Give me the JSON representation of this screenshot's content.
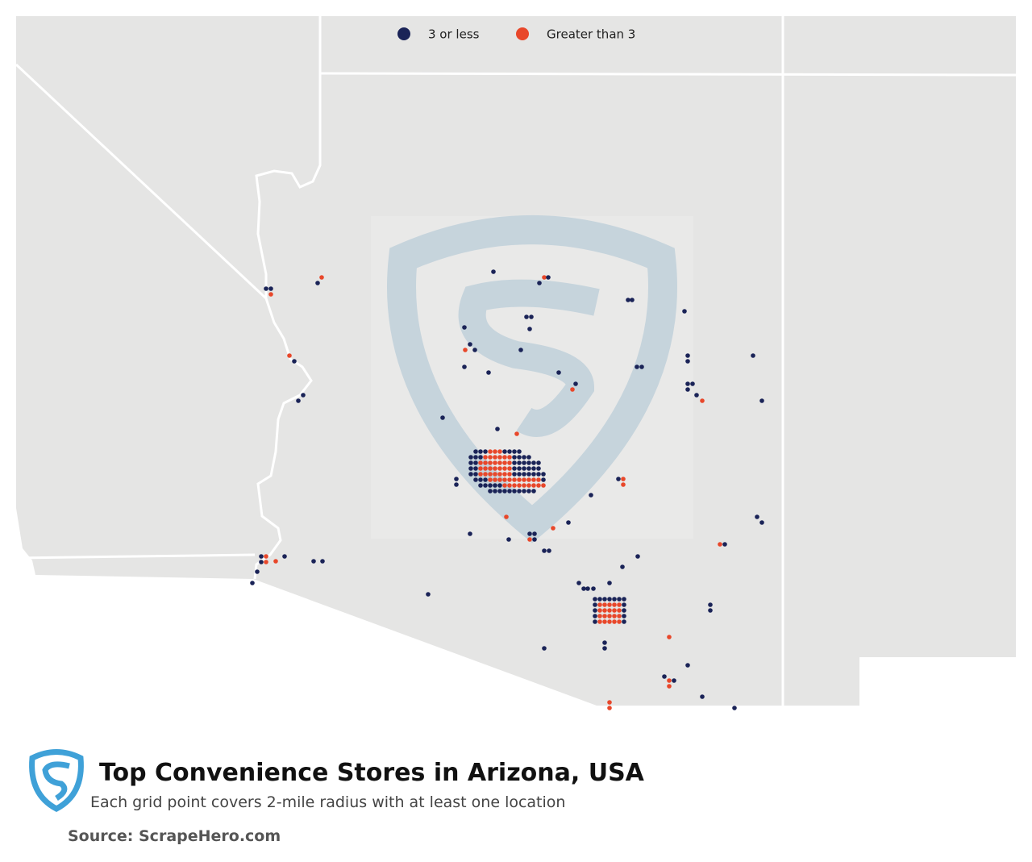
{
  "legend": [
    {
      "label": "3 or less",
      "color": "#1a2357"
    },
    {
      "label": "Greater than 3",
      "color": "#e8472a"
    }
  ],
  "title": "Top Convenience Stores in Arizona, USA",
  "subtitle": "Each grid point covers 2-mile radius with at least one location",
  "source": "Source: ScrapeHero.com"
}
